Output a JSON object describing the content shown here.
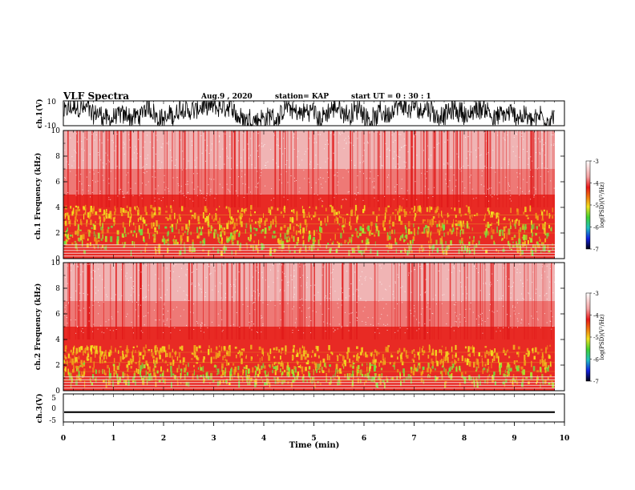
{
  "header": {
    "title": "VLF Spectra",
    "date": "Aug.9 , 2020",
    "station": "station= KAP",
    "start": "start UT = 0 : 30 : 1"
  },
  "colors": {
    "red": "#e8201e",
    "pink": "#f6a8a8",
    "yellow": "#f0e020",
    "green": "#60e040",
    "blue": "#1030e0",
    "black": "#000000"
  },
  "chart_data": [
    {
      "type": "line",
      "panel": "ch1-waveform",
      "ylabel": "ch.1(V)",
      "ylim": [
        -10,
        10
      ],
      "yticks": [
        "10",
        "-10"
      ],
      "xlim": [
        0,
        10
      ],
      "description_of_values": "dense noisy waveform spanning roughly -10 to 10 V",
      "amplitude": 10
    },
    {
      "type": "heatmap",
      "panel": "ch1-spectrogram",
      "ylabel": "ch.1 Frequency (kHz)",
      "ylim": [
        0,
        10
      ],
      "yticks": [
        "0",
        "2",
        "4",
        "6",
        "8",
        "10"
      ],
      "xlim": [
        0,
        10
      ],
      "colorbar": {
        "label": "log(PSD)(V²/Hz)",
        "ticks": [
          "-3",
          "-4",
          "-5",
          "-6",
          "-7"
        ],
        "range": [
          -7,
          -3
        ]
      },
      "band_centers_khz": [
        1.0,
        2.0,
        2.7,
        3.4
      ],
      "max_green_khz": 2.8
    },
    {
      "type": "heatmap",
      "panel": "ch2-spectrogram",
      "ylabel": "ch.2 Frequency (kHz)",
      "ylim": [
        0,
        10
      ],
      "yticks": [
        "0",
        "2",
        "4",
        "6",
        "8",
        "10"
      ],
      "xlim": [
        0,
        10
      ],
      "colorbar": {
        "label": "log(PSD)(V²/Hz)",
        "ticks": [
          "-3",
          "-4",
          "-5",
          "-6",
          "-7"
        ],
        "range": [
          -7,
          -3
        ]
      },
      "band_centers_khz": [
        0.8,
        1.5,
        2.2,
        3.0
      ],
      "max_green_khz": 2.2
    },
    {
      "type": "line",
      "panel": "ch3-waveform",
      "ylabel": "ch.3(V)",
      "ylim": [
        -5,
        5
      ],
      "yticks": [
        "5",
        "0",
        "-5"
      ],
      "xlim": [
        0,
        10
      ],
      "center_value": -1.5,
      "amplitude": 0.3
    }
  ],
  "xaxis": {
    "label": "Time (min)",
    "ticks": [
      "0",
      "1",
      "2",
      "3",
      "4",
      "5",
      "6",
      "7",
      "8",
      "9",
      "10"
    ],
    "range": [
      0,
      10
    ]
  }
}
